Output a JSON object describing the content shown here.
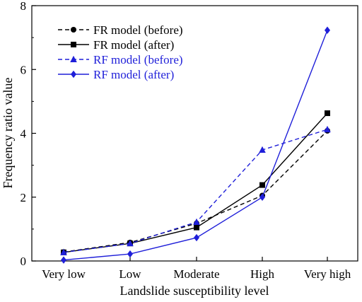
{
  "chart_data": {
    "type": "line",
    "xlabel": "Landslide susceptibility level",
    "ylabel": "Frequency ratio value",
    "categories": [
      "Very low",
      "Low",
      "Moderate",
      "High",
      "Very high"
    ],
    "ylim": [
      0,
      8
    ],
    "yticks": [
      0,
      2,
      4,
      6,
      8
    ],
    "grid": false,
    "legend_position": "top-left",
    "series": [
      {
        "name": "FR model (before)",
        "values": [
          0.28,
          0.58,
          1.18,
          2.05,
          4.08
        ],
        "color": "#000000",
        "dashed": true,
        "marker": "circle"
      },
      {
        "name": "FR model (after)",
        "values": [
          0.27,
          0.55,
          1.05,
          2.38,
          4.63
        ],
        "color": "#000000",
        "dashed": false,
        "marker": "square"
      },
      {
        "name": "RF model (before)",
        "values": [
          0.27,
          0.55,
          1.22,
          3.48,
          4.12
        ],
        "color": "#1f1fd9",
        "dashed": true,
        "marker": "triangle"
      },
      {
        "name": "RF model (after)",
        "values": [
          0.03,
          0.22,
          0.73,
          2.0,
          7.23
        ],
        "color": "#1f1fd9",
        "dashed": false,
        "marker": "diamond"
      }
    ]
  }
}
